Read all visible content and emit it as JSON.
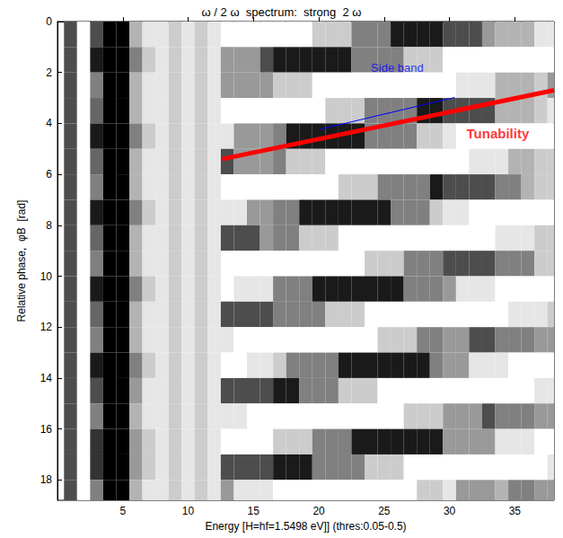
{
  "chart_data": {
    "type": "heatmap",
    "title": "ω / 2 ω  spectrum:  strong  2 ω",
    "x_label": "Energy [H=hf=1.5498 eV]] (thres:0.05-0.5)",
    "y_label": "Relative phase,  φB  [rad]",
    "xlim": [
      0,
      38
    ],
    "xticks": [
      5,
      10,
      15,
      20,
      25,
      30,
      35
    ],
    "ylim": [
      0,
      18.8
    ],
    "yticks": [
      0,
      2,
      4,
      6,
      8,
      10,
      12,
      14,
      16,
      18
    ],
    "grid": false,
    "color": "#000000",
    "x": [
      1,
      2,
      3,
      4,
      5,
      6,
      7,
      8,
      9,
      10,
      11,
      12,
      13,
      14,
      15,
      16,
      17,
      18,
      19,
      20,
      21,
      22,
      23,
      24,
      25,
      26,
      27,
      28,
      29,
      30,
      31,
      32,
      33,
      34,
      35,
      36,
      37,
      38
    ],
    "y": [
      0.5,
      1.5,
      2.5,
      3.5,
      4.5,
      5.5,
      6.5,
      7.5,
      8.5,
      9.5,
      10.5,
      11.5,
      12.5,
      13.5,
      14.5,
      15.5,
      16.5,
      17.5,
      18.5
    ],
    "z": [
      [
        0.7,
        0.7,
        0.7,
        0.7,
        0.7,
        0.7,
        0.7,
        0.7,
        0.7,
        0.7,
        0.7,
        0.7,
        0.7,
        0.7,
        0.7,
        0.7,
        0.7,
        0.7,
        0.7
      ],
      [
        0,
        0,
        0,
        0,
        0,
        0,
        0,
        0,
        0,
        0,
        0,
        0,
        0,
        0,
        0,
        0,
        0,
        0,
        0
      ],
      [
        0.7,
        0.9,
        0.5,
        0.6,
        0.9,
        0.6,
        0.5,
        0.9,
        0.6,
        0.5,
        0.9,
        0.6,
        0.5,
        0.9,
        0.7,
        0.5,
        0.8,
        0.8,
        0.5
      ],
      [
        1,
        1,
        1,
        1,
        1,
        1,
        1,
        1,
        1,
        1,
        1,
        1,
        1,
        1,
        1,
        1,
        1,
        1,
        1
      ],
      [
        1,
        1,
        1,
        1,
        1,
        1,
        1,
        1,
        1,
        1,
        1,
        1,
        1,
        1,
        1,
        1,
        1,
        1,
        1
      ],
      [
        0.3,
        0.5,
        0.3,
        0.3,
        0.5,
        0.3,
        0.3,
        0.5,
        0.3,
        0.3,
        0.5,
        0.3,
        0.3,
        0.5,
        0.4,
        0.3,
        0.4,
        0.4,
        0.3
      ],
      [
        0.1,
        0.2,
        0.1,
        0.1,
        0.2,
        0.1,
        0.1,
        0.2,
        0.1,
        0.1,
        0.2,
        0.1,
        0.1,
        0.2,
        0.1,
        0.1,
        0.2,
        0.2,
        0.1
      ],
      [
        0.1,
        0.1,
        0.1,
        0.1,
        0.1,
        0.1,
        0.1,
        0.1,
        0.1,
        0.1,
        0.1,
        0.1,
        0.1,
        0.1,
        0.1,
        0.1,
        0.1,
        0.1,
        0.1
      ],
      [
        0.2,
        0.2,
        0.2,
        0.2,
        0.2,
        0.2,
        0.2,
        0.2,
        0.2,
        0.2,
        0.2,
        0.2,
        0.2,
        0.2,
        0.2,
        0.2,
        0.2,
        0.2,
        0.2
      ],
      [
        0.1,
        0.1,
        0.1,
        0.1,
        0.1,
        0.1,
        0.1,
        0.1,
        0.1,
        0.1,
        0.1,
        0.1,
        0.1,
        0.1,
        0.1,
        0.1,
        0.1,
        0.1,
        0.1
      ],
      [
        0.2,
        0.2,
        0.2,
        0.2,
        0.2,
        0.2,
        0.2,
        0.2,
        0.2,
        0.2,
        0.2,
        0.2,
        0.2,
        0.2,
        0.2,
        0.2,
        0.2,
        0.2,
        0.2
      ],
      [
        0.1,
        0.1,
        0.1,
        0.1,
        0.1,
        0.1,
        0.1,
        0.1,
        0.1,
        0.1,
        0.1,
        0.1,
        0.1,
        0.1,
        0.1,
        0.1,
        0.1,
        0.1,
        0.1
      ],
      [
        0,
        0.4,
        0.4,
        0,
        0.1,
        0.7,
        0,
        0.1,
        0.7,
        0,
        0,
        0.7,
        0.1,
        0,
        0.7,
        0.1,
        0,
        0.7,
        0.4
      ],
      [
        0,
        0.4,
        0.4,
        0,
        0.4,
        0.4,
        0,
        0.1,
        0.7,
        0,
        0.1,
        0.7,
        0,
        0,
        0.7,
        0.1,
        0,
        0.7,
        0.1
      ],
      [
        0,
        0.4,
        0.4,
        0,
        0.4,
        0.4,
        0,
        0.4,
        0.7,
        0,
        0.1,
        0.7,
        0,
        0.1,
        0.7,
        0,
        0,
        0.7,
        0.1
      ],
      [
        0,
        0.7,
        0.4,
        0,
        0.4,
        0.4,
        0,
        0.4,
        0.4,
        0,
        0.1,
        0.7,
        0,
        0.1,
        0.7,
        0,
        0,
        0.7,
        0.1
      ],
      [
        0,
        0.9,
        0.2,
        0,
        0.5,
        0.5,
        0,
        0.5,
        0.5,
        0,
        0.5,
        0.5,
        0,
        0.2,
        0.9,
        0,
        0.2,
        0.9,
        0
      ],
      [
        0,
        0.9,
        0.2,
        0,
        0.9,
        0.2,
        0,
        0.5,
        0.5,
        0,
        0.5,
        0.5,
        0,
        0.5,
        0.9,
        0,
        0.2,
        0.9,
        0
      ],
      [
        0,
        0.9,
        0.2,
        0,
        0.9,
        0.2,
        0,
        0.9,
        0.2,
        0,
        0.5,
        0.5,
        0,
        0.5,
        0.5,
        0,
        0.2,
        0.9,
        0
      ],
      [
        0.2,
        0.9,
        0,
        0,
        0.9,
        0.2,
        0,
        0.9,
        0.2,
        0,
        0.9,
        0.5,
        0,
        0.5,
        0.5,
        0,
        0.5,
        0.5,
        0
      ],
      [
        0.2,
        0.9,
        0,
        0.2,
        0.9,
        0,
        0,
        0.9,
        0.2,
        0,
        0.9,
        0.2,
        0,
        0.5,
        0.5,
        0,
        0.5,
        0.5,
        0
      ],
      [
        0.2,
        0.9,
        0,
        0.2,
        0.9,
        0,
        0.2,
        0.9,
        0,
        0,
        0.9,
        0.2,
        0,
        0.9,
        0.2,
        0,
        0.5,
        0.5,
        0
      ],
      [
        0.5,
        0.5,
        0,
        0.2,
        0.9,
        0,
        0.2,
        0.9,
        0,
        0,
        0.9,
        0.2,
        0,
        0.9,
        0.2,
        0,
        0.9,
        0.5,
        0
      ],
      [
        0.5,
        0.5,
        0,
        0.5,
        0.5,
        0,
        0.2,
        0.9,
        0,
        0.2,
        0.9,
        0,
        0,
        0.9,
        0.2,
        0,
        0.9,
        0.2,
        0
      ],
      [
        0.5,
        0.5,
        0,
        0.5,
        0.5,
        0,
        0.5,
        0.9,
        0,
        0.2,
        0.9,
        0,
        0.2,
        0.9,
        0,
        0,
        0.9,
        0.2,
        0
      ],
      [
        0.9,
        0.5,
        0,
        0.5,
        0.5,
        0,
        0.5,
        0.5,
        0,
        0.2,
        0.9,
        0,
        0.2,
        0.9,
        0,
        0,
        0.9,
        0.2,
        0
      ],
      [
        0.9,
        0.2,
        0,
        0.5,
        0.5,
        0,
        0.5,
        0.5,
        0,
        0.5,
        0.5,
        0,
        0.2,
        0.9,
        0,
        0.2,
        0.9,
        0,
        0
      ],
      [
        0.9,
        0.2,
        0,
        0.9,
        0.2,
        0,
        0.5,
        0.5,
        0,
        0.5,
        0.5,
        0,
        0.5,
        0.9,
        0,
        0.2,
        0.9,
        0,
        0.2
      ],
      [
        0.9,
        0.2,
        0,
        0.9,
        0.2,
        0,
        0.9,
        0.2,
        0,
        0.5,
        0.5,
        0,
        0.5,
        0.5,
        0,
        0.2,
        0.9,
        0,
        0.2
      ],
      [
        0.7,
        0,
        0,
        0.7,
        0.1,
        0,
        0.7,
        0.1,
        0,
        0.7,
        0.4,
        0,
        0.4,
        0.4,
        0,
        0.4,
        0.4,
        0,
        0.1
      ],
      [
        0.7,
        0,
        0.1,
        0.7,
        0,
        0,
        0.7,
        0.1,
        0,
        0.7,
        0.1,
        0,
        0.4,
        0.4,
        0,
        0.4,
        0.4,
        0,
        0.4
      ],
      [
        0.7,
        0,
        0.1,
        0.7,
        0,
        0.1,
        0.7,
        0,
        0,
        0.7,
        0.1,
        0,
        0.7,
        0.1,
        0,
        0.4,
        0.4,
        0,
        0.4
      ],
      [
        0.4,
        0,
        0.1,
        0.7,
        0,
        0.1,
        0.7,
        0,
        0,
        0.7,
        0.1,
        0,
        0.7,
        0.1,
        0,
        0.7,
        0.4,
        0,
        0.4
      ],
      [
        0.3,
        0,
        0.3,
        0.3,
        0,
        0.1,
        0.5,
        0,
        0.1,
        0.5,
        0,
        0,
        0.5,
        0.1,
        0,
        0.5,
        0.1,
        0,
        0.3
      ],
      [
        0.3,
        0,
        0.3,
        0.3,
        0,
        0.3,
        0.5,
        0,
        0.1,
        0.5,
        0,
        0.1,
        0.5,
        0,
        0,
        0.5,
        0.1,
        0,
        0.5
      ],
      [
        0.3,
        0,
        0.3,
        0.3,
        0,
        0.3,
        0.3,
        0,
        0.1,
        0.5,
        0,
        0.1,
        0.5,
        0,
        0,
        0.5,
        0.1,
        0,
        0.5
      ],
      [
        0.1,
        0,
        0.2,
        0.2,
        0,
        0.2,
        0.2,
        0,
        0.2,
        0.2,
        0,
        0.1,
        0.4,
        0,
        0.1,
        0.4,
        0,
        0,
        0.4
      ],
      [
        0.1,
        0,
        0.4,
        0.1,
        0,
        0.2,
        0.2,
        0,
        0.2,
        0.2,
        0,
        0.2,
        0.4,
        0,
        0.1,
        0.4,
        0,
        0.1,
        0.4
      ]
    ],
    "annotations": [
      {
        "text": "Tunability",
        "color": "#ff0000",
        "line_style": "thick",
        "x": 33.7,
        "y": 4.4,
        "line": [
          [
            12.6,
            5.4
          ],
          [
            38,
            2.7
          ]
        ]
      },
      {
        "text": "Side band",
        "color": "#0000ff",
        "line_style": "thin",
        "x": 26,
        "y": 1.8,
        "line": [
          [
            20.1,
            4.23
          ],
          [
            30.4,
            2.98
          ]
        ]
      }
    ]
  }
}
